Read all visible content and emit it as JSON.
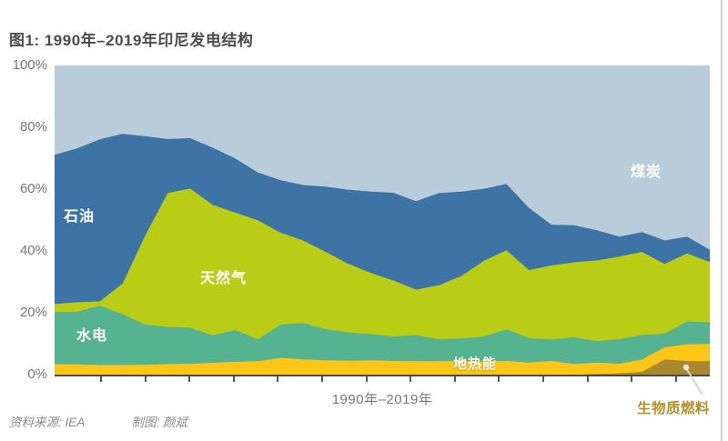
{
  "page": {
    "title": "图1: 1990年–2019年印尼发电结构"
  },
  "chart_data": {
    "type": "area",
    "stacked": true,
    "unit": "% of power generation",
    "title": "图1: 1990年–2019年印尼发电结构",
    "xlabel": "1990年–2019年",
    "ylim": [
      0,
      100
    ],
    "yticks": [
      "100%",
      "80%",
      "60%",
      "40%",
      "20%",
      "0%"
    ],
    "xtick_count": 14,
    "xtick_years_unlabeled": [
      1992,
      1994,
      1996,
      1998,
      2000,
      2002,
      2004,
      2006,
      2008,
      2010,
      2012,
      2014,
      2016,
      2018
    ],
    "legend_position": "labels inside plot",
    "x": [
      1990,
      1991,
      1992,
      1993,
      1994,
      1995,
      1996,
      1997,
      1998,
      1999,
      2000,
      2001,
      2002,
      2003,
      2004,
      2005,
      2006,
      2007,
      2008,
      2009,
      2010,
      2011,
      2012,
      2013,
      2014,
      2015,
      2016,
      2017,
      2018,
      2019
    ],
    "series": [
      {
        "id": "biofuel",
        "name": "生物质燃料",
        "color": "#a8892f",
        "label_color": "#b3912a",
        "values": [
          0,
          0,
          0,
          0,
          0,
          0,
          0,
          0,
          0,
          0,
          0,
          0,
          0,
          0,
          0,
          0,
          0,
          0,
          0,
          0,
          0,
          0,
          0,
          0,
          0.3,
          0.5,
          1.0,
          5.0,
          4.5,
          4.4
        ]
      },
      {
        "id": "geothermal",
        "name": "地热能",
        "color": "#fcc618",
        "values": [
          3.5,
          3.4,
          3.2,
          3.2,
          3.3,
          3.5,
          3.6,
          3.9,
          4.2,
          4.4,
          5.5,
          5.0,
          4.7,
          4.6,
          4.7,
          4.5,
          4.4,
          4.4,
          4.5,
          4.4,
          4.5,
          4.0,
          4.5,
          3.5,
          3.7,
          3.1,
          4.0,
          3.9,
          5.4,
          5.6
        ]
      },
      {
        "id": "hydro",
        "name": "水电",
        "color": "#56b392",
        "values": [
          16.8,
          17.0,
          19.2,
          16.5,
          13.0,
          12.0,
          11.7,
          8.9,
          10.3,
          7.1,
          10.8,
          11.8,
          10.1,
          9.2,
          8.5,
          7.9,
          8.5,
          7.1,
          7.3,
          8.0,
          10.3,
          7.9,
          6.9,
          8.7,
          6.9,
          8.0,
          7.9,
          4.4,
          7.4,
          7.0
        ]
      },
      {
        "id": "gas",
        "name": "天然气",
        "color": "#b9cc16",
        "values": [
          2.6,
          3.1,
          1.4,
          9.8,
          28.7,
          43.3,
          45.0,
          42.2,
          38.0,
          38.5,
          29.7,
          26.7,
          25.0,
          22.1,
          19.8,
          18.1,
          14.7,
          17.5,
          20.2,
          24.5,
          25.5,
          22.0,
          24.0,
          24.2,
          26.1,
          26.7,
          26.9,
          22.6,
          22.0,
          19.5
        ]
      },
      {
        "id": "oil",
        "name": "石油",
        "color": "#3e73a6",
        "values": [
          48.3,
          49.8,
          52.4,
          48.5,
          32.2,
          17.5,
          16.3,
          18.5,
          17.5,
          15.5,
          17.0,
          17.9,
          21.1,
          24.0,
          26.3,
          28.4,
          28.6,
          29.8,
          27.3,
          23.3,
          21.5,
          20.1,
          13.2,
          12.0,
          9.8,
          6.4,
          6.4,
          7.6,
          5.4,
          4.0
        ]
      },
      {
        "id": "coal",
        "name": "煤炭",
        "color": "#b8cdd9",
        "values": [
          28.8,
          26.7,
          23.8,
          22.0,
          22.8,
          23.7,
          23.4,
          26.5,
          30.0,
          34.5,
          37.0,
          38.6,
          39.1,
          40.1,
          40.7,
          41.1,
          43.8,
          41.2,
          40.7,
          39.8,
          38.2,
          46.0,
          51.4,
          51.6,
          53.2,
          55.3,
          53.8,
          56.5,
          55.3,
          59.5
        ]
      }
    ]
  },
  "footer": {
    "source": "资料来源: IEA",
    "credit": "制图: 颜斌"
  }
}
